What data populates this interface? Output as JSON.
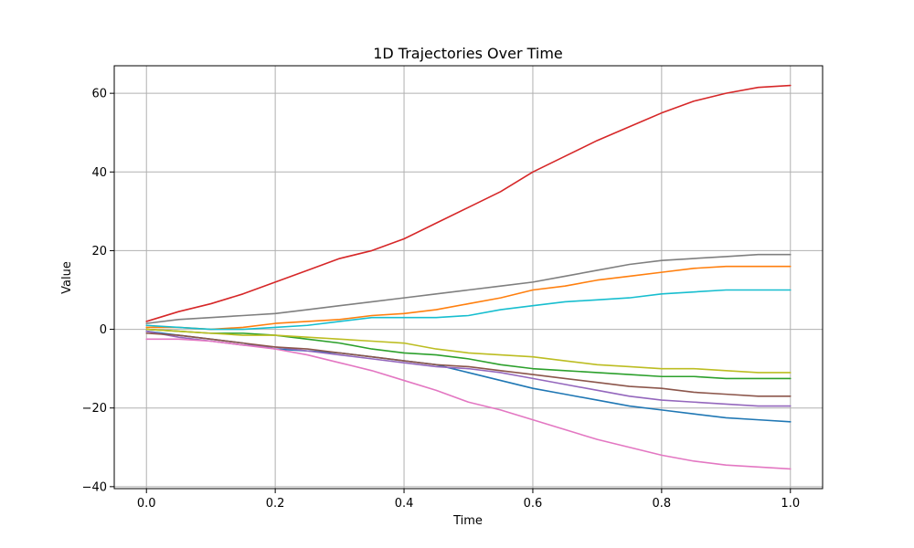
{
  "chart_data": {
    "type": "line",
    "title": "1D Trajectories Over Time",
    "xlabel": "Time",
    "ylabel": "Value",
    "xlim": [
      -0.05,
      1.05
    ],
    "ylim": [
      -40.5,
      67
    ],
    "x_ticks": [
      0.0,
      0.2,
      0.4,
      0.6,
      0.8,
      1.0
    ],
    "x_tick_labels": [
      "0.0",
      "0.2",
      "0.4",
      "0.6",
      "0.8",
      "1.0"
    ],
    "y_ticks": [
      -40,
      -20,
      0,
      20,
      40,
      60
    ],
    "y_tick_labels": [
      "−40",
      "−20",
      "0",
      "20",
      "40",
      "60"
    ],
    "grid": true,
    "legend": "none",
    "x": [
      0.0,
      0.05,
      0.1,
      0.15,
      0.2,
      0.25,
      0.3,
      0.35,
      0.4,
      0.45,
      0.5,
      0.55,
      0.6,
      0.65,
      0.7,
      0.75,
      0.8,
      0.85,
      0.9,
      0.95,
      1.0
    ],
    "series": [
      {
        "color": "#1f77b4",
        "values": [
          -0.5,
          -1.5,
          -2.5,
          -3.5,
          -5,
          -5.5,
          -6,
          -7,
          -8,
          -9,
          -11,
          -13,
          -15,
          -16.5,
          -18,
          -19.5,
          -20.5,
          -21.5,
          -22.5,
          -23,
          -23.5
        ]
      },
      {
        "color": "#ff7f0e",
        "values": [
          0.5,
          0.5,
          0,
          0.5,
          1.5,
          2,
          2.5,
          3.5,
          4,
          5,
          6.5,
          8,
          10,
          11,
          12.5,
          13.5,
          14.5,
          15.5,
          16,
          16,
          16
        ]
      },
      {
        "color": "#2ca02c",
        "values": [
          0,
          -0.5,
          -1,
          -1,
          -1.5,
          -2.5,
          -3.5,
          -5,
          -6,
          -6.5,
          -7.5,
          -9,
          -10,
          -10.5,
          -11,
          -11.5,
          -12,
          -12,
          -12.5,
          -12.5,
          -12.5
        ]
      },
      {
        "color": "#d62728",
        "values": [
          2,
          4.5,
          6.5,
          9,
          12,
          15,
          18,
          20,
          23,
          27,
          31,
          35,
          40,
          44,
          48,
          51.5,
          55,
          58,
          60,
          61.5,
          62
        ]
      },
      {
        "color": "#9467bd",
        "values": [
          -0.5,
          -2,
          -3,
          -4,
          -4.5,
          -5.5,
          -6.5,
          -7.5,
          -8.5,
          -9.5,
          -10,
          -11,
          -12.5,
          -14,
          -15.5,
          -17,
          -18,
          -18.5,
          -19,
          -19.5,
          -19.5
        ]
      },
      {
        "color": "#8c564b",
        "values": [
          -1,
          -1.5,
          -2.5,
          -3.5,
          -4.5,
          -5,
          -6,
          -7,
          -8,
          -9,
          -9.5,
          -10.5,
          -11.5,
          -12.5,
          -13.5,
          -14.5,
          -15,
          -16,
          -16.5,
          -17,
          -17
        ]
      },
      {
        "color": "#e377c2",
        "values": [
          -2.5,
          -2.5,
          -3,
          -4,
          -5,
          -6.5,
          -8.5,
          -10.5,
          -13,
          -15.5,
          -18.5,
          -20.5,
          -23,
          -25.5,
          -28,
          -30,
          -32,
          -33.5,
          -34.5,
          -35,
          -35.5
        ]
      },
      {
        "color": "#7f7f7f",
        "values": [
          1.5,
          2.5,
          3,
          3.5,
          4,
          5,
          6,
          7,
          8,
          9,
          10,
          11,
          12,
          13.5,
          15,
          16.5,
          17.5,
          18,
          18.5,
          19,
          19
        ]
      },
      {
        "color": "#bcbd22",
        "values": [
          0,
          -0.5,
          -1,
          -1.5,
          -1.5,
          -2,
          -2.5,
          -3,
          -3.5,
          -5,
          -6,
          -6.5,
          -7,
          -8,
          -9,
          -9.5,
          -10,
          -10,
          -10.5,
          -11,
          -11
        ]
      },
      {
        "color": "#17becf",
        "values": [
          1,
          0.5,
          0,
          0,
          0.5,
          1,
          2,
          3,
          3,
          3,
          3.5,
          5,
          6,
          7,
          7.5,
          8,
          9,
          9.5,
          10,
          10,
          10
        ]
      }
    ]
  }
}
